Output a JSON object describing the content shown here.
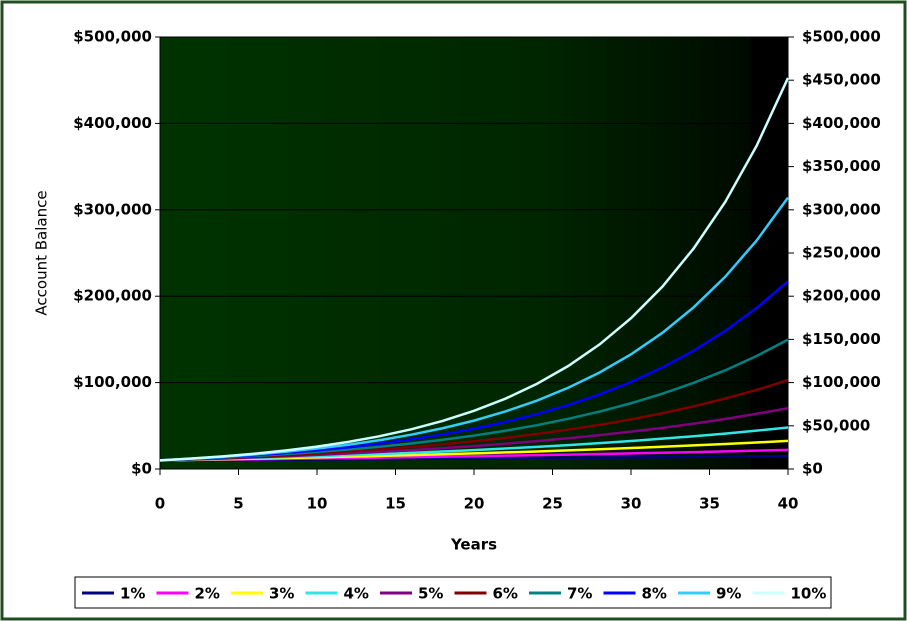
{
  "chart_data": {
    "type": "line",
    "y_label": "Account Balance",
    "x_label": "Years",
    "x": [
      0,
      2,
      4,
      6,
      8,
      10,
      12,
      14,
      16,
      18,
      20,
      22,
      24,
      26,
      28,
      30,
      32,
      34,
      36,
      38,
      40
    ],
    "xlim": [
      0,
      40
    ],
    "xticks": [
      0,
      5,
      10,
      15,
      20,
      25,
      30,
      35,
      40
    ],
    "ylim": [
      0,
      500000
    ],
    "yticks": [
      {
        "value": 0,
        "label": "$0"
      },
      {
        "value": 100000,
        "label": "$100,000"
      },
      {
        "value": 200000,
        "label": "$200,000"
      },
      {
        "value": 300000,
        "label": "$300,000"
      },
      {
        "value": 400000,
        "label": "$400,000"
      },
      {
        "value": 500000,
        "label": "$500,000"
      }
    ],
    "y2lim": [
      0,
      500000
    ],
    "y2ticks": [
      {
        "value": 0,
        "label": "$0"
      },
      {
        "value": 50000,
        "label": "$50,000"
      },
      {
        "value": 100000,
        "label": "$100,000"
      },
      {
        "value": 150000,
        "label": "$150,000"
      },
      {
        "value": 200000,
        "label": "$200,000"
      },
      {
        "value": 250000,
        "label": "$250,000"
      },
      {
        "value": 300000,
        "label": "$300,000"
      },
      {
        "value": 350000,
        "label": "$350,000"
      },
      {
        "value": 400000,
        "label": "$400,000"
      },
      {
        "value": 450000,
        "label": "$450,000"
      },
      {
        "value": 500000,
        "label": "$500,000"
      }
    ],
    "grid": true,
    "legend": "bottom",
    "series": [
      {
        "name": "1%",
        "color": "#000080",
        "values": [
          10000,
          10200,
          10400,
          10600,
          10800,
          11000,
          11300,
          11500,
          11700,
          12000,
          12200,
          12400,
          12700,
          13000,
          13200,
          13500,
          13700,
          14000,
          14300,
          14600,
          14900
        ]
      },
      {
        "name": "2%",
        "color": "#ff00ff",
        "values": [
          10000,
          10400,
          10800,
          11300,
          11700,
          12200,
          12700,
          13200,
          13700,
          14300,
          14900,
          15500,
          16100,
          16700,
          17400,
          18100,
          18800,
          19600,
          20400,
          21200,
          22100
        ]
      },
      {
        "name": "3%",
        "color": "#ffff00",
        "values": [
          10000,
          10600,
          11300,
          11900,
          12700,
          13400,
          14300,
          15100,
          16000,
          17000,
          18100,
          19200,
          20300,
          21600,
          22900,
          24300,
          25800,
          27300,
          29000,
          30700,
          32600
        ]
      },
      {
        "name": "4%",
        "color": "#33e6e6",
        "values": [
          10000,
          10800,
          11700,
          12700,
          13700,
          14800,
          16000,
          17300,
          18700,
          20300,
          21900,
          23700,
          25600,
          27700,
          30000,
          32400,
          35100,
          37900,
          41000,
          44400,
          48000
        ]
      },
      {
        "name": "5%",
        "color": "#800080",
        "values": [
          10000,
          11000,
          12200,
          13400,
          14800,
          16300,
          18000,
          19800,
          21800,
          24100,
          26500,
          29300,
          32300,
          35600,
          39200,
          43200,
          47600,
          52500,
          57900,
          63900,
          70400
        ]
      },
      {
        "name": "6%",
        "color": "#800000",
        "values": [
          10000,
          11200,
          12600,
          14200,
          15900,
          17900,
          20100,
          22600,
          25400,
          28500,
          32100,
          36000,
          40500,
          45500,
          51100,
          57400,
          64500,
          72500,
          81500,
          91500,
          102900
        ]
      },
      {
        "name": "7%",
        "color": "#008080",
        "values": [
          10000,
          11400,
          13100,
          15000,
          17200,
          19700,
          22500,
          25800,
          29500,
          33800,
          38700,
          44300,
          50700,
          58100,
          66500,
          76100,
          87200,
          99800,
          114200,
          130800,
          149700
        ]
      },
      {
        "name": "8%",
        "color": "#0000ff",
        "values": [
          10000,
          11700,
          13600,
          15900,
          18500,
          21600,
          25200,
          29400,
          34300,
          40000,
          46600,
          54400,
          63400,
          74000,
          86300,
          100600,
          117400,
          136900,
          159700,
          186300,
          217200
        ]
      },
      {
        "name": "9%",
        "color": "#33ccff",
        "values": [
          10000,
          11900,
          14100,
          16800,
          19900,
          23700,
          28100,
          33400,
          39700,
          47200,
          56000,
          66600,
          79100,
          94000,
          111700,
          132700,
          157600,
          187300,
          222500,
          264400,
          314100
        ]
      },
      {
        "name": "10%",
        "color": "#ccffff",
        "values": [
          10000,
          12100,
          14600,
          17700,
          21400,
          25900,
          31400,
          38000,
          45900,
          55600,
          67300,
          81400,
          98500,
          119200,
          144200,
          174500,
          211100,
          255500,
          309100,
          374000,
          452600
        ]
      }
    ]
  }
}
